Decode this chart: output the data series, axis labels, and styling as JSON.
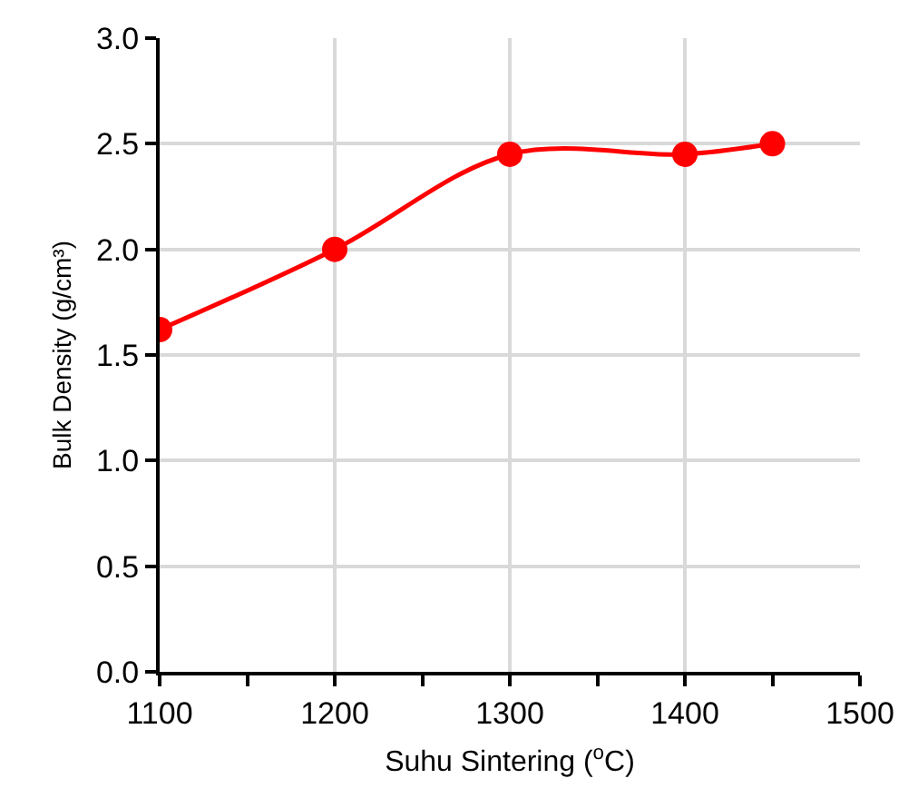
{
  "chart_data": {
    "type": "line",
    "xlabel": "Suhu Sintering ($^{o}$C)",
    "ylabel": "Bulk Density (g/cm³)",
    "x": [
      1100,
      1200,
      1300,
      1400,
      1450
    ],
    "series": [
      {
        "color": "#ff0000",
        "values": [
          1.62,
          2.0,
          2.45,
          2.45,
          2.5
        ]
      }
    ],
    "xlim": [
      1100,
      1500
    ],
    "xticks": [
      1100,
      {
        "value": 1150,
        "label": null
      },
      1200,
      {
        "value": 1250,
        "label": null
      },
      1300,
      {
        "value": 1350,
        "label": null
      },
      1400,
      {
        "value": 1450,
        "label": null
      },
      1500
    ],
    "ylim": [
      0,
      3
    ],
    "yticks": [
      {
        "value": 0,
        "label": "0.0"
      },
      {
        "value": 0.5,
        "label": "0.5"
      },
      {
        "value": 1,
        "label": "1.0"
      },
      {
        "value": 1.5,
        "label": "1.5"
      },
      {
        "value": 2,
        "label": "2.0"
      },
      {
        "value": 2.5,
        "label": "2.5"
      },
      {
        "value": 3,
        "label": "3.0"
      }
    ],
    "grid": true,
    "marker": "circle",
    "line_style": "solid"
  }
}
